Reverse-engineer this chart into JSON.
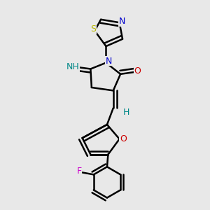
{
  "bg_color": "#e8e8e8",
  "atom_colors": {
    "C": "#000000",
    "N": "#0000cc",
    "O": "#cc0000",
    "S": "#b8b800",
    "F": "#cc00cc",
    "H": "#008888"
  },
  "figsize": [
    3.0,
    3.0
  ],
  "dpi": 100
}
